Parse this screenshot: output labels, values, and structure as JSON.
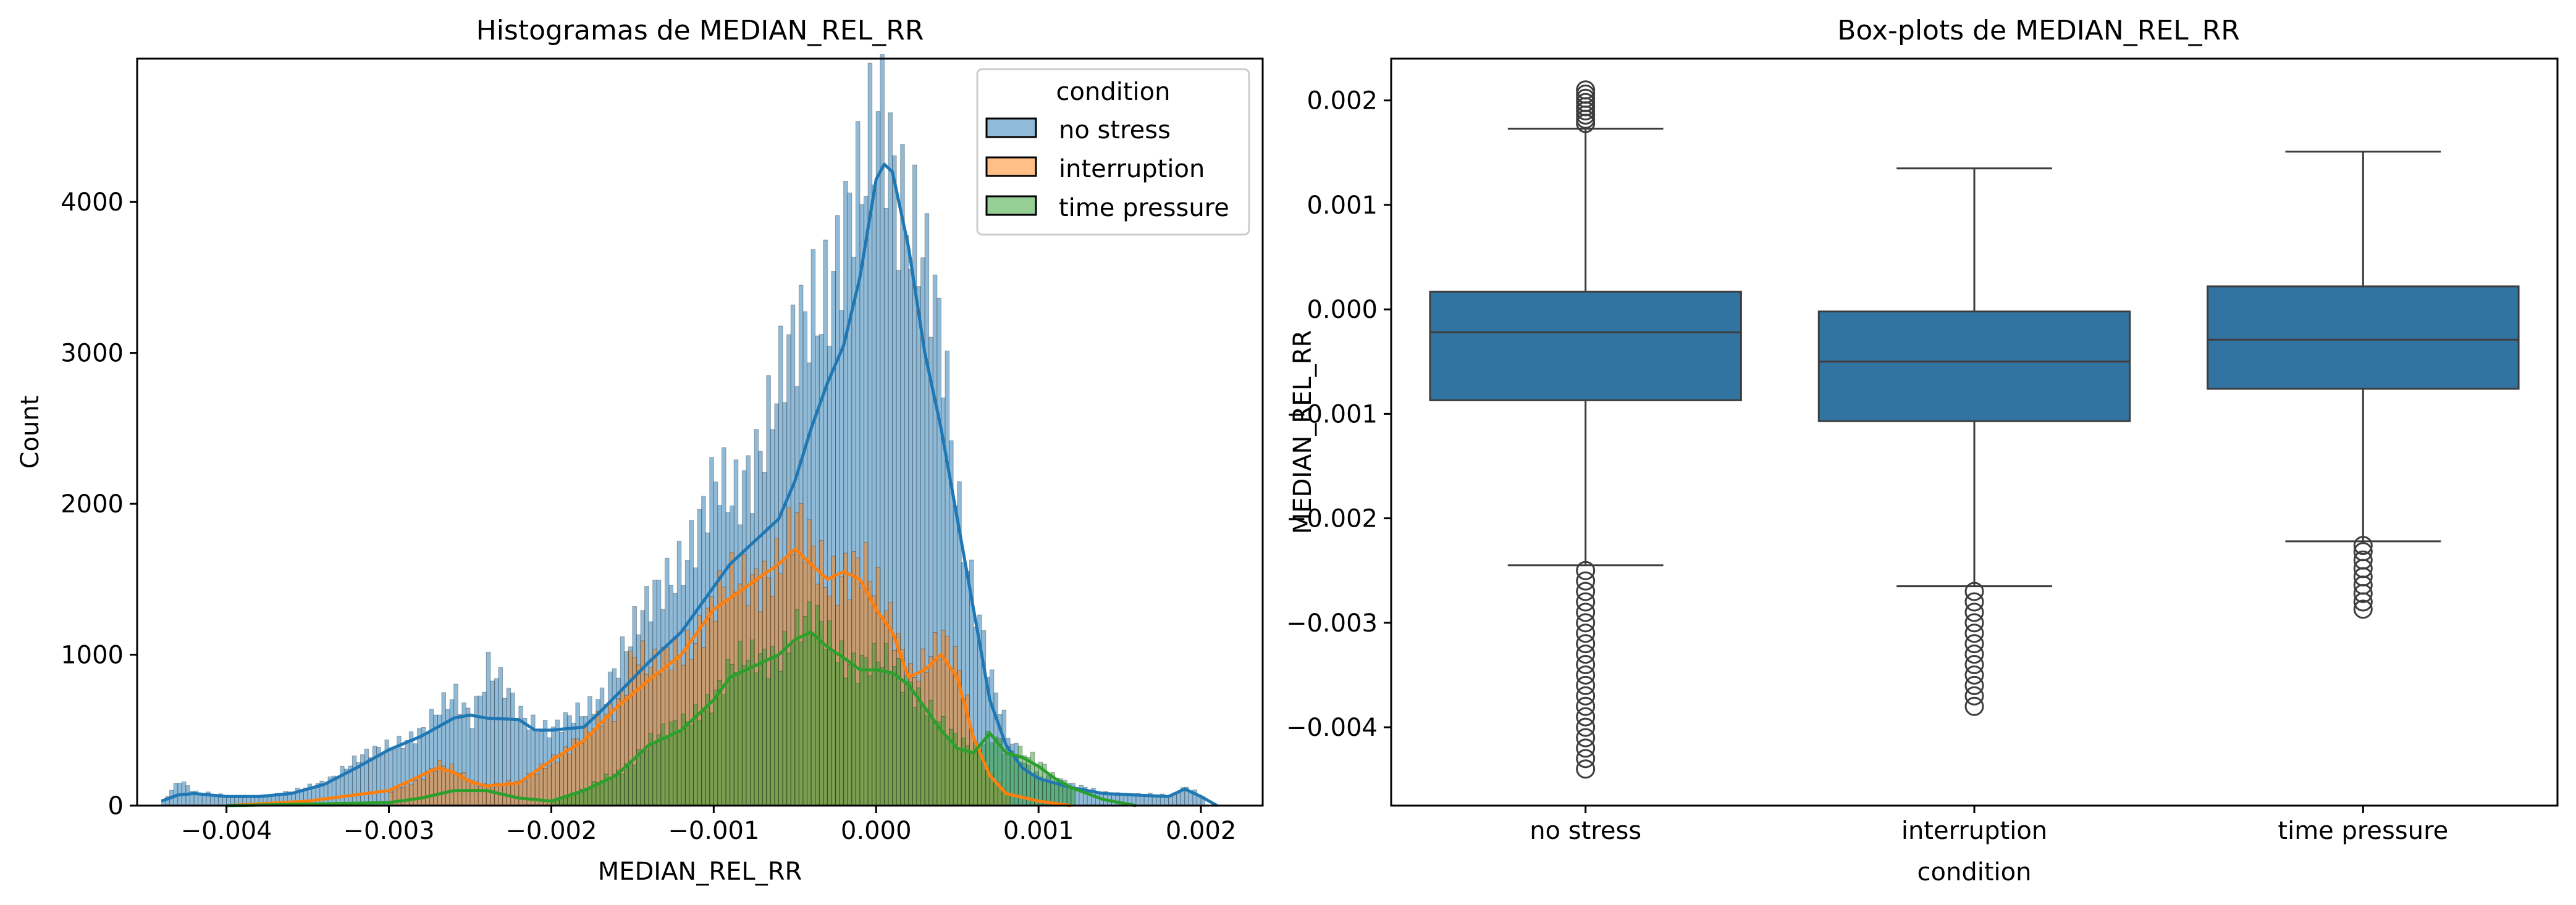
{
  "chart_data": [
    {
      "type": "histogram",
      "title": "Histogramas de MEDIAN_REL_RR",
      "xlabel": "MEDIAN_REL_RR",
      "ylabel": "Count",
      "xlim": [
        -0.00455,
        0.00238
      ],
      "ylim": [
        0,
        4950
      ],
      "xticks": [
        -0.004,
        -0.003,
        -0.002,
        -0.001,
        0.0,
        0.001,
        0.002
      ],
      "xtick_labels": [
        "−0.004",
        "−0.003",
        "−0.002",
        "−0.001",
        "0.000",
        "0.001",
        "0.002"
      ],
      "yticks": [
        0,
        1000,
        2000,
        3000,
        4000
      ],
      "ytick_labels": [
        "0",
        "1000",
        "2000",
        "3000",
        "4000"
      ],
      "grid": false,
      "legend": {
        "title": "condition",
        "position": "top-right",
        "entries": [
          "no stress",
          "interruption",
          "time pressure"
        ]
      },
      "series": [
        {
          "name": "no stress",
          "color": "#1f77b4",
          "kde_x": [
            -0.0044,
            -0.0043,
            -0.0042,
            -0.004,
            -0.0038,
            -0.0036,
            -0.0034,
            -0.0032,
            -0.003,
            -0.0028,
            -0.0026,
            -0.0025,
            -0.0024,
            -0.0022,
            -0.0021,
            -0.002,
            -0.0018,
            -0.0017,
            -0.0016,
            -0.0014,
            -0.0012,
            -0.001,
            -0.0009,
            -0.0008,
            -0.0006,
            -0.0005,
            -0.0004,
            -0.0003,
            -0.0002,
            -0.0001,
            0.0,
            5e-05,
            0.0001,
            0.0002,
            0.0003,
            0.0004,
            0.0005,
            0.0006,
            0.0007,
            0.0008,
            0.0009,
            0.001,
            0.0012,
            0.0014,
            0.0016,
            0.0018,
            0.0019,
            0.002,
            0.0021
          ],
          "kde_y": [
            30,
            70,
            80,
            60,
            60,
            80,
            140,
            250,
            370,
            460,
            580,
            600,
            580,
            570,
            500,
            500,
            520,
            620,
            730,
            950,
            1150,
            1450,
            1600,
            1700,
            1900,
            2150,
            2500,
            2800,
            3050,
            3500,
            4150,
            4250,
            4200,
            3700,
            3000,
            2500,
            1900,
            1300,
            700,
            400,
            250,
            180,
            120,
            80,
            70,
            60,
            110,
            60,
            0
          ],
          "hist_x": [
            -0.0044,
            -0.0043,
            -0.0042,
            -0.004,
            -0.0038,
            -0.0036,
            -0.0034,
            -0.0032,
            -0.003,
            -0.0028,
            -0.0026,
            -0.0025,
            -0.0024,
            -0.0022,
            -0.0021,
            -0.002,
            -0.0018,
            -0.0017,
            -0.0016,
            -0.0014,
            -0.0012,
            -0.001,
            -0.0009,
            -0.0008,
            -0.0006,
            -0.0005,
            -0.0004,
            -0.0003,
            -0.0002,
            -0.0001,
            0.0,
            5e-05,
            0.0001,
            0.0002,
            0.0003,
            0.0004,
            0.0005,
            0.0006,
            0.0007,
            0.0008,
            0.0009,
            0.001,
            0.0012,
            0.0014,
            0.0016,
            0.0018,
            0.0019,
            0.002
          ],
          "hist_y": [
            30,
            180,
            90,
            60,
            60,
            90,
            170,
            300,
            420,
            480,
            750,
            620,
            900,
            600,
            550,
            520,
            600,
            750,
            1000,
            1300,
            1700,
            2050,
            2000,
            2300,
            2750,
            3000,
            3400,
            3600,
            3800,
            3900,
            4600,
            4700,
            4400,
            3900,
            3400,
            2950,
            2000,
            1400,
            800,
            450,
            280,
            200,
            130,
            90,
            70,
            70,
            130,
            60
          ]
        },
        {
          "name": "interruption",
          "color": "#ff7f0e",
          "kde_x": [
            -0.004,
            -0.0035,
            -0.003,
            -0.0028,
            -0.0027,
            -0.0026,
            -0.0025,
            -0.0024,
            -0.0022,
            -0.002,
            -0.0018,
            -0.0016,
            -0.0014,
            -0.0012,
            -0.001,
            -0.0008,
            -0.0006,
            -0.0005,
            -0.0004,
            -0.0003,
            -0.0002,
            -0.0001,
            0.0,
            0.0001,
            0.0002,
            0.0003,
            0.0004,
            0.0005,
            0.0006,
            0.0007,
            0.0008,
            0.001,
            0.0012
          ],
          "kde_y": [
            0,
            30,
            100,
            200,
            250,
            220,
            160,
            130,
            150,
            300,
            430,
            650,
            830,
            1000,
            1300,
            1450,
            1600,
            1700,
            1600,
            1500,
            1550,
            1500,
            1300,
            1150,
            850,
            900,
            1000,
            850,
            450,
            200,
            80,
            30,
            0
          ],
          "hist_x": [
            -0.003,
            -0.0028,
            -0.0027,
            -0.0026,
            -0.0025,
            -0.0024,
            -0.0022,
            -0.002,
            -0.0018,
            -0.0016,
            -0.0015,
            -0.0014,
            -0.0012,
            -0.001,
            -0.0008,
            -0.0006,
            -0.0005,
            -0.0004,
            -0.0003,
            -0.0002,
            -0.0001,
            0.0,
            0.0001,
            0.0002,
            0.0003,
            0.0004,
            0.0005,
            0.0006,
            0.0007,
            0.0008
          ],
          "hist_y": [
            100,
            200,
            260,
            230,
            170,
            130,
            150,
            320,
            450,
            700,
            1050,
            880,
            1050,
            1350,
            1500,
            1650,
            1800,
            1650,
            1550,
            1600,
            1550,
            1350,
            1200,
            900,
            950,
            1050,
            900,
            450,
            200,
            80
          ]
        },
        {
          "name": "time pressure",
          "color": "#2ca02c",
          "kde_x": [
            -0.004,
            -0.003,
            -0.0028,
            -0.0026,
            -0.0024,
            -0.0022,
            -0.002,
            -0.0018,
            -0.0016,
            -0.0014,
            -0.0012,
            -0.001,
            -0.0009,
            -0.0008,
            -0.0006,
            -0.0005,
            -0.0004,
            -0.0003,
            -0.0002,
            -0.0001,
            0.0,
            0.0001,
            0.0002,
            0.0003,
            0.0004,
            0.0005,
            0.0006,
            0.0007,
            0.0008,
            0.0009,
            0.001,
            0.0011,
            0.0012,
            0.0014,
            0.0016
          ],
          "kde_y": [
            0,
            20,
            50,
            100,
            100,
            50,
            30,
            100,
            200,
            400,
            500,
            700,
            850,
            900,
            1000,
            1100,
            1150,
            1050,
            980,
            900,
            900,
            880,
            800,
            650,
            500,
            380,
            350,
            480,
            350,
            320,
            260,
            180,
            120,
            40,
            0
          ],
          "hist_x": [
            -0.002,
            -0.0018,
            -0.0016,
            -0.0014,
            -0.0012,
            -0.001,
            -0.0009,
            -0.0008,
            -0.0006,
            -0.0005,
            -0.0004,
            -0.0003,
            -0.0002,
            -0.0001,
            0.0,
            0.0001,
            0.0002,
            0.0003,
            0.0004,
            0.0005,
            0.0006,
            0.0007,
            0.0008,
            0.0009,
            0.001,
            0.0011,
            0.0012
          ],
          "hist_y": [
            30,
            110,
            220,
            430,
            540,
            760,
            900,
            950,
            1050,
            1150,
            1200,
            1100,
            1000,
            950,
            930,
            900,
            820,
            680,
            520,
            400,
            380,
            500,
            360,
            330,
            280,
            190,
            130
          ]
        }
      ]
    },
    {
      "type": "box",
      "title": "Box-plots de MEDIAN_REL_RR",
      "xlabel": "condition",
      "ylabel": "MEDIAN_REL_RR",
      "ylim": [
        -0.00475,
        0.0024
      ],
      "yticks": [
        0.002,
        0.001,
        0.0,
        -0.001,
        -0.002,
        -0.003,
        -0.004
      ],
      "ytick_labels": [
        "0.002",
        "0.001",
        "0.000",
        "−0.001",
        "−0.002",
        "−0.003",
        "−0.004"
      ],
      "grid": false,
      "color": "#3274a1",
      "categories": [
        "no stress",
        "interruption",
        "time pressure"
      ],
      "boxes": [
        {
          "category": "no stress",
          "whisker_low": -0.00245,
          "q1": -0.00087,
          "median": -0.00022,
          "q3": 0.00017,
          "whisker_high": 0.00173,
          "outliers_high": [
            0.00178,
            0.00182,
            0.00186,
            0.0019,
            0.00194,
            0.00198,
            0.00202,
            0.00206,
            0.0021
          ],
          "outliers_low": [
            -0.0025,
            -0.0026,
            -0.0027,
            -0.0028,
            -0.0029,
            -0.003,
            -0.0031,
            -0.0032,
            -0.0033,
            -0.0034,
            -0.0035,
            -0.0036,
            -0.0037,
            -0.0038,
            -0.0039,
            -0.004,
            -0.0041,
            -0.0042,
            -0.0043,
            -0.0044
          ]
        },
        {
          "category": "interruption",
          "whisker_low": -0.00265,
          "q1": -0.00107,
          "median": -0.0005,
          "q3": -2e-05,
          "whisker_high": 0.00135,
          "outliers_high": [],
          "outliers_low": [
            -0.0027,
            -0.0028,
            -0.0029,
            -0.003,
            -0.0031,
            -0.0032,
            -0.0033,
            -0.0034,
            -0.0035,
            -0.0036,
            -0.0037,
            -0.0038
          ]
        },
        {
          "category": "time pressure",
          "whisker_low": -0.00222,
          "q1": -0.00076,
          "median": -0.00029,
          "q3": 0.00022,
          "whisker_high": 0.00151,
          "outliers_high": [],
          "outliers_low": [
            -0.00226,
            -0.00232,
            -0.0024,
            -0.00248,
            -0.00256,
            -0.00264,
            -0.00272,
            -0.0028,
            -0.00287
          ]
        }
      ]
    }
  ]
}
